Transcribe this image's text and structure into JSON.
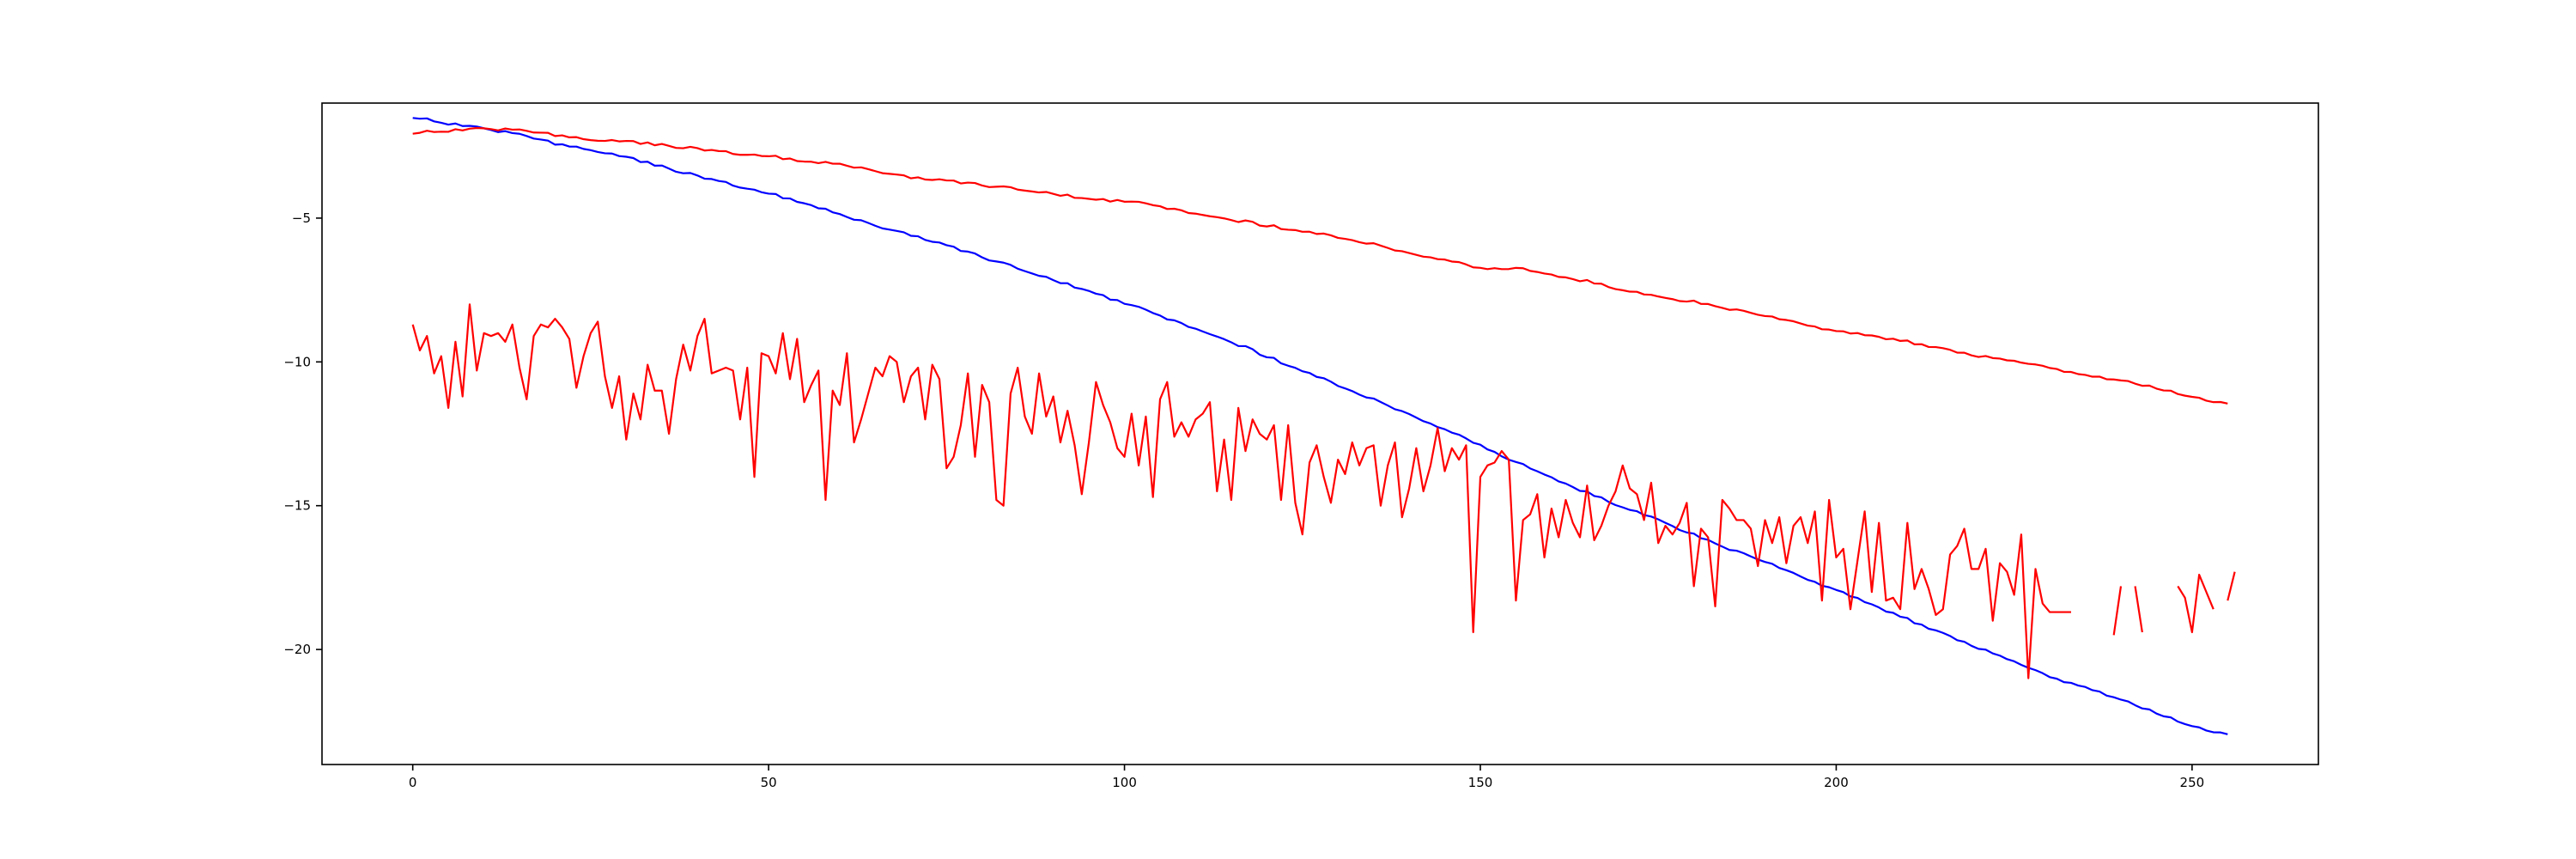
{
  "chart_data": {
    "type": "line",
    "title": "",
    "xlabel": "",
    "ylabel": "",
    "xlim": [
      -12.75,
      267.75
    ],
    "ylim": [
      -24.0,
      -1.0
    ],
    "grid": false,
    "legend": "none",
    "x_ticks": [
      {
        "value": 0,
        "label": "0"
      },
      {
        "value": 50,
        "label": "50"
      },
      {
        "value": 100,
        "label": "100"
      },
      {
        "value": 150,
        "label": "150"
      },
      {
        "value": 200,
        "label": "200"
      },
      {
        "value": 250,
        "label": "250"
      }
    ],
    "y_ticks": [
      {
        "value": -5,
        "label": "−5"
      },
      {
        "value": -10,
        "label": "−10"
      },
      {
        "value": -15,
        "label": "−15"
      },
      {
        "value": -20,
        "label": "−20"
      }
    ],
    "series": [
      {
        "color": "#0000ff",
        "kind": "anchors",
        "points": [
          [
            0,
            -1.5
          ],
          [
            5,
            -1.7
          ],
          [
            10,
            -1.9
          ],
          [
            15,
            -2.1
          ],
          [
            20,
            -2.4
          ],
          [
            25,
            -2.6
          ],
          [
            30,
            -2.9
          ],
          [
            35,
            -3.2
          ],
          [
            40,
            -3.55
          ],
          [
            45,
            -3.85
          ],
          [
            50,
            -4.15
          ],
          [
            55,
            -4.45
          ],
          [
            60,
            -4.85
          ],
          [
            65,
            -5.25
          ],
          [
            70,
            -5.6
          ],
          [
            75,
            -5.95
          ],
          [
            80,
            -6.35
          ],
          [
            85,
            -6.75
          ],
          [
            90,
            -7.15
          ],
          [
            95,
            -7.55
          ],
          [
            100,
            -7.95
          ],
          [
            105,
            -8.4
          ],
          [
            110,
            -8.85
          ],
          [
            115,
            -9.3
          ],
          [
            120,
            -9.8
          ],
          [
            125,
            -10.3
          ],
          [
            130,
            -10.8
          ],
          [
            135,
            -11.3
          ],
          [
            140,
            -11.8
          ],
          [
            145,
            -12.35
          ],
          [
            150,
            -12.9
          ],
          [
            155,
            -13.5
          ],
          [
            160,
            -14.0
          ],
          [
            165,
            -14.55
          ],
          [
            170,
            -15.05
          ],
          [
            175,
            -15.5
          ],
          [
            180,
            -16.0
          ],
          [
            185,
            -16.5
          ],
          [
            190,
            -16.95
          ],
          [
            195,
            -17.45
          ],
          [
            200,
            -17.95
          ],
          [
            205,
            -18.45
          ],
          [
            210,
            -18.95
          ],
          [
            215,
            -19.45
          ],
          [
            220,
            -19.95
          ],
          [
            225,
            -20.45
          ],
          [
            230,
            -20.95
          ],
          [
            235,
            -21.35
          ],
          [
            240,
            -21.75
          ],
          [
            245,
            -22.2
          ],
          [
            250,
            -22.65
          ],
          [
            255,
            -22.95
          ]
        ]
      },
      {
        "color": "#ff0000",
        "kind": "anchors",
        "points": [
          [
            0,
            -2.05
          ],
          [
            5,
            -1.95
          ],
          [
            10,
            -1.9
          ],
          [
            15,
            -1.95
          ],
          [
            20,
            -2.1
          ],
          [
            25,
            -2.25
          ],
          [
            30,
            -2.35
          ],
          [
            35,
            -2.45
          ],
          [
            40,
            -2.6
          ],
          [
            45,
            -2.75
          ],
          [
            50,
            -2.85
          ],
          [
            55,
            -3.0
          ],
          [
            60,
            -3.1
          ],
          [
            65,
            -3.35
          ],
          [
            70,
            -3.6
          ],
          [
            75,
            -3.7
          ],
          [
            80,
            -3.85
          ],
          [
            85,
            -4.0
          ],
          [
            90,
            -4.15
          ],
          [
            95,
            -4.35
          ],
          [
            100,
            -4.4
          ],
          [
            105,
            -4.6
          ],
          [
            110,
            -4.85
          ],
          [
            115,
            -5.05
          ],
          [
            120,
            -5.25
          ],
          [
            125,
            -5.45
          ],
          [
            130,
            -5.65
          ],
          [
            135,
            -5.9
          ],
          [
            140,
            -6.2
          ],
          [
            145,
            -6.45
          ],
          [
            150,
            -6.75
          ],
          [
            155,
            -6.75
          ],
          [
            160,
            -6.95
          ],
          [
            165,
            -7.2
          ],
          [
            170,
            -7.5
          ],
          [
            175,
            -7.75
          ],
          [
            180,
            -7.9
          ],
          [
            185,
            -8.15
          ],
          [
            190,
            -8.4
          ],
          [
            195,
            -8.65
          ],
          [
            200,
            -8.95
          ],
          [
            205,
            -9.1
          ],
          [
            210,
            -9.3
          ],
          [
            215,
            -9.55
          ],
          [
            220,
            -9.8
          ],
          [
            225,
            -10.0
          ],
          [
            230,
            -10.2
          ],
          [
            235,
            -10.5
          ],
          [
            240,
            -10.65
          ],
          [
            245,
            -10.9
          ],
          [
            250,
            -11.2
          ],
          [
            255,
            -11.45
          ]
        ]
      },
      {
        "color": "#ff0000",
        "kind": "raw",
        "values": [
          -8.7,
          -9.6,
          -9.1,
          -10.4,
          -9.8,
          -11.6,
          -9.3,
          -11.2,
          -8.0,
          -10.3,
          -9.0,
          -9.1,
          -9.0,
          -9.3,
          -8.7,
          -10.2,
          -11.3,
          -9.1,
          -8.7,
          -8.8,
          -8.5,
          -8.8,
          -9.2,
          -10.9,
          -9.8,
          -9.0,
          -8.6,
          -10.5,
          -11.6,
          -10.5,
          -12.7,
          -11.1,
          -12.0,
          -10.1,
          -11.0,
          -11.0,
          -12.5,
          -10.6,
          -9.4,
          -10.3,
          -9.1,
          -8.5,
          -10.4,
          -10.3,
          -10.2,
          -10.3,
          -12.0,
          -10.2,
          -14.0,
          -9.7,
          -9.8,
          -10.4,
          -9.0,
          -10.6,
          -9.2,
          -11.4,
          -10.8,
          -10.3,
          -14.8,
          -11.0,
          -11.5,
          -9.7,
          -12.8,
          -12.0,
          -11.1,
          -10.2,
          -10.5,
          -9.8,
          -10.0,
          -11.4,
          -10.5,
          -10.2,
          -12.0,
          -10.1,
          -10.6,
          -13.7,
          -13.3,
          -12.2,
          -10.4,
          -13.3,
          -10.8,
          -11.4,
          -14.8,
          -15.0,
          -11.1,
          -10.2,
          -11.9,
          -12.5,
          -10.4,
          -11.9,
          -11.2,
          -12.8,
          -11.7,
          -12.9,
          -14.6,
          -12.8,
          -10.7,
          -11.5,
          -12.1,
          -13.0,
          -13.3,
          -11.8,
          -13.6,
          -11.9,
          -14.7,
          -11.3,
          -10.7,
          -12.6,
          -12.1,
          -12.6,
          -12.0,
          -11.8,
          -11.4,
          -14.5,
          -12.7,
          -14.8,
          -11.6,
          -13.1,
          -12.0,
          -12.5,
          -12.7,
          -12.2,
          -14.8,
          -12.2,
          -14.9,
          -16.0,
          -13.5,
          -12.9,
          -14.0,
          -14.9,
          -13.4,
          -13.9,
          -12.8,
          -13.6,
          -13.0,
          -12.9,
          -15.0,
          -13.6,
          -12.8,
          -15.4,
          -14.4,
          -13.0,
          -14.5,
          -13.6,
          -12.3,
          -13.8,
          -13.0,
          -13.4,
          -12.9,
          -19.4,
          -14.0,
          -13.6,
          -13.5,
          -13.1,
          -13.4,
          -18.3,
          -15.5,
          -15.3,
          -14.6,
          -16.8,
          -15.1,
          -16.1,
          -14.8,
          -15.6,
          -16.1,
          -14.3,
          -16.2,
          -15.7,
          -15.0,
          -14.5,
          -13.6,
          -14.4,
          -14.6,
          -15.5,
          -14.2,
          -16.3,
          -15.7,
          -16.0,
          -15.6,
          -14.9,
          -17.8,
          -15.8,
          -16.1,
          -18.5,
          -14.8,
          -15.1,
          -15.5,
          -15.5,
          -15.8,
          -17.1,
          -15.5,
          -16.3,
          -15.4,
          -17.0,
          -15.7,
          -15.4,
          -16.3,
          -15.2,
          -18.3,
          -14.8,
          -16.8,
          -16.5,
          -18.6,
          -16.9,
          -15.2,
          -18.0,
          -15.6,
          -18.3,
          -18.2,
          -18.6,
          -15.6,
          -17.9,
          -17.2,
          -17.9,
          -18.8,
          -18.6,
          -16.7,
          -16.4,
          -15.8,
          -17.2,
          -17.2,
          -16.5,
          -19.0,
          -17.0,
          -17.3,
          -18.1,
          -16.0,
          -21.0,
          -17.2,
          -18.4,
          -18.7,
          -18.7,
          -18.7,
          -18.7,
          null,
          null,
          null,
          null,
          null,
          -19.5,
          -17.8,
          null,
          -17.8,
          -19.4,
          null,
          null,
          null,
          null,
          -17.8,
          -18.2,
          -19.4,
          -17.4,
          -18.0,
          -18.6,
          null,
          -18.3,
          -17.3
        ]
      }
    ]
  }
}
